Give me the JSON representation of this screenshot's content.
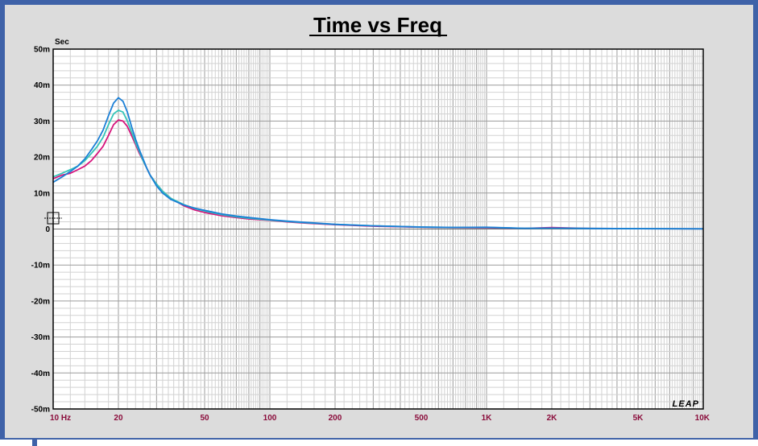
{
  "chart_data": {
    "type": "line",
    "title": "Time vs Freq",
    "ylabel": "Sec",
    "xscale": "log",
    "xlim": [
      10,
      10000
    ],
    "ylim": [
      -50,
      50
    ],
    "y_unit_suffix": "m",
    "grid": true,
    "brand": "LEAP",
    "x_ticks": [
      {
        "value": 10,
        "label": "10  Hz"
      },
      {
        "value": 20,
        "label": "20"
      },
      {
        "value": 50,
        "label": "50"
      },
      {
        "value": 100,
        "label": "100"
      },
      {
        "value": 200,
        "label": "200"
      },
      {
        "value": 500,
        "label": "500"
      },
      {
        "value": 1000,
        "label": "1K"
      },
      {
        "value": 2000,
        "label": "2K"
      },
      {
        "value": 5000,
        "label": "5K"
      },
      {
        "value": 10000,
        "label": "10K"
      }
    ],
    "y_ticks": [
      {
        "value": 50,
        "label": "50m"
      },
      {
        "value": 40,
        "label": "40m"
      },
      {
        "value": 30,
        "label": "30m"
      },
      {
        "value": 20,
        "label": "20m"
      },
      {
        "value": 10,
        "label": "10m"
      },
      {
        "value": 0,
        "label": "0"
      },
      {
        "value": -10,
        "label": "-10m"
      },
      {
        "value": -20,
        "label": "-20m"
      },
      {
        "value": -30,
        "label": "-30m"
      },
      {
        "value": -40,
        "label": "-40m"
      },
      {
        "value": -50,
        "label": "-50m"
      }
    ],
    "series": [
      {
        "color": "#d6147c",
        "points": [
          [
            10,
            14
          ],
          [
            11,
            15
          ],
          [
            12,
            15.5
          ],
          [
            13,
            16.5
          ],
          [
            14,
            17.5
          ],
          [
            15,
            19
          ],
          [
            16,
            21
          ],
          [
            17,
            23
          ],
          [
            18,
            26
          ],
          [
            19,
            29
          ],
          [
            20,
            30.3
          ],
          [
            21,
            30
          ],
          [
            22,
            28.5
          ],
          [
            23,
            26
          ],
          [
            24,
            23.5
          ],
          [
            25,
            21
          ],
          [
            26,
            19
          ],
          [
            27,
            17
          ],
          [
            28,
            15
          ],
          [
            30,
            12.5
          ],
          [
            32,
            10.5
          ],
          [
            35,
            8.5
          ],
          [
            40,
            6.5
          ],
          [
            45,
            5.3
          ],
          [
            50,
            4.6
          ],
          [
            60,
            3.7
          ],
          [
            70,
            3.2
          ],
          [
            80,
            2.8
          ],
          [
            100,
            2.4
          ],
          [
            120,
            2.0
          ],
          [
            150,
            1.6
          ],
          [
            200,
            1.2
          ],
          [
            300,
            0.8
          ],
          [
            500,
            0.5
          ],
          [
            700,
            0.4
          ],
          [
            1000,
            0.35
          ],
          [
            1500,
            0.2
          ],
          [
            2000,
            0.4
          ],
          [
            3000,
            0.15
          ],
          [
            5000,
            0.1
          ],
          [
            10000,
            0.05
          ]
        ]
      },
      {
        "color": "#34c4b8",
        "points": [
          [
            10,
            14.5
          ],
          [
            11,
            15.5
          ],
          [
            12,
            16.5
          ],
          [
            13,
            17.5
          ],
          [
            14,
            19
          ],
          [
            15,
            21
          ],
          [
            16,
            23
          ],
          [
            17,
            25.5
          ],
          [
            18,
            29
          ],
          [
            19,
            32
          ],
          [
            20,
            33
          ],
          [
            21,
            32.5
          ],
          [
            22,
            30
          ],
          [
            23,
            27
          ],
          [
            24,
            24
          ],
          [
            25,
            21.5
          ],
          [
            26,
            19
          ],
          [
            27,
            17
          ],
          [
            28,
            15
          ],
          [
            30,
            12.5
          ],
          [
            32,
            10.5
          ],
          [
            35,
            8.5
          ],
          [
            40,
            6.8
          ],
          [
            45,
            5.7
          ],
          [
            50,
            5.0
          ],
          [
            60,
            4.0
          ],
          [
            70,
            3.4
          ],
          [
            80,
            3.0
          ],
          [
            100,
            2.5
          ],
          [
            120,
            2.1
          ],
          [
            150,
            1.7
          ],
          [
            200,
            1.3
          ],
          [
            300,
            0.9
          ],
          [
            500,
            0.55
          ],
          [
            700,
            0.45
          ],
          [
            1000,
            0.45
          ],
          [
            1500,
            0.2
          ],
          [
            2000,
            0.25
          ],
          [
            3000,
            0.15
          ],
          [
            5000,
            0.1
          ],
          [
            10000,
            0.05
          ]
        ]
      },
      {
        "color": "#1a7fd6",
        "points": [
          [
            10,
            13
          ],
          [
            11,
            14.5
          ],
          [
            12,
            16
          ],
          [
            13,
            17.5
          ],
          [
            14,
            19.5
          ],
          [
            15,
            22
          ],
          [
            16,
            24.5
          ],
          [
            17,
            27.5
          ],
          [
            18,
            31.5
          ],
          [
            19,
            35
          ],
          [
            20,
            36.5
          ],
          [
            21,
            35.5
          ],
          [
            22,
            32.5
          ],
          [
            23,
            28.5
          ],
          [
            24,
            25
          ],
          [
            25,
            22
          ],
          [
            26,
            19.5
          ],
          [
            27,
            17
          ],
          [
            28,
            15
          ],
          [
            30,
            12
          ],
          [
            32,
            10
          ],
          [
            35,
            8.2
          ],
          [
            40,
            6.7
          ],
          [
            45,
            5.8
          ],
          [
            50,
            5.2
          ],
          [
            60,
            4.2
          ],
          [
            70,
            3.6
          ],
          [
            80,
            3.2
          ],
          [
            100,
            2.6
          ],
          [
            120,
            2.2
          ],
          [
            150,
            1.8
          ],
          [
            200,
            1.3
          ],
          [
            300,
            0.9
          ],
          [
            500,
            0.55
          ],
          [
            700,
            0.45
          ],
          [
            1000,
            0.5
          ],
          [
            1500,
            0.2
          ],
          [
            2000,
            0.25
          ],
          [
            3000,
            0.15
          ],
          [
            5000,
            0.1
          ],
          [
            10000,
            0.05
          ]
        ]
      }
    ]
  }
}
